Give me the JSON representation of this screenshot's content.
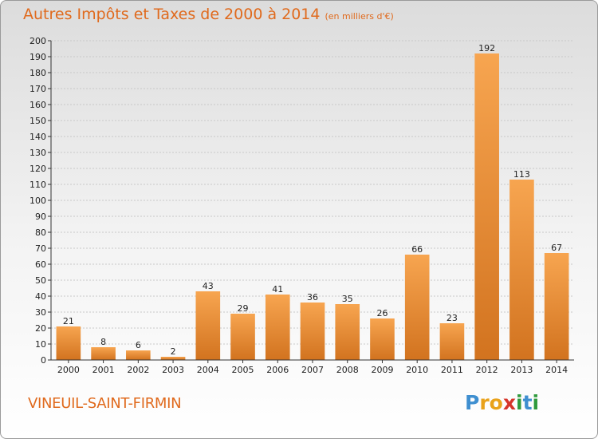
{
  "title": "Autres Impôts et Taxes de 2000 à 2014",
  "unit": "(en milliers d'€)",
  "location": "VINEUIL-SAINT-FIRMIN",
  "logo": {
    "letters": [
      "P",
      "r",
      "o",
      "x",
      "i",
      "t",
      "i"
    ],
    "colors": [
      "#3f8fd0",
      "#e9a21b",
      "#e9a21b",
      "#d6352b",
      "#2f9a3c",
      "#3f8fd0",
      "#2f9a3c"
    ]
  },
  "colors": {
    "bar_light": "#f7a550",
    "bar_dark": "#d2731f",
    "title": "#e06a1d"
  },
  "chart_data": {
    "type": "bar",
    "categories": [
      "2000",
      "2001",
      "2002",
      "2003",
      "2004",
      "2005",
      "2006",
      "2007",
      "2008",
      "2009",
      "2010",
      "2011",
      "2012",
      "2013",
      "2014"
    ],
    "values": [
      21,
      8,
      6,
      2,
      43,
      29,
      41,
      36,
      35,
      26,
      66,
      23,
      192,
      113,
      67
    ],
    "value_labels": [
      "21",
      "8",
      "6",
      "2",
      "43",
      "29",
      "41",
      "36",
      "35",
      "26",
      "66",
      "23",
      "192",
      "113",
      "67"
    ],
    "y_ticks": [
      "0",
      "10",
      "20",
      "30",
      "40",
      "50",
      "60",
      "70",
      "80",
      "90",
      "100",
      "110",
      "120",
      "130",
      "140",
      "150",
      "160",
      "170",
      "180",
      "190",
      "200"
    ],
    "ylim": [
      0,
      200
    ],
    "grid": true
  }
}
